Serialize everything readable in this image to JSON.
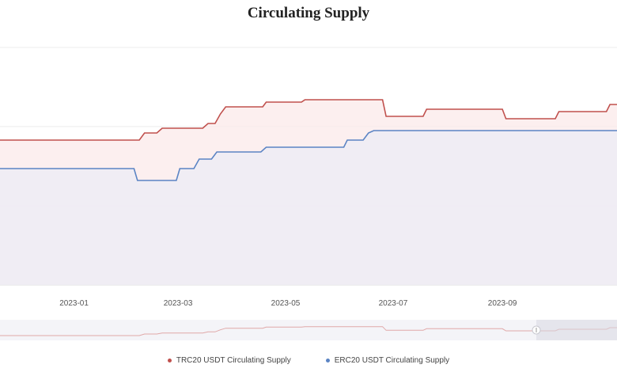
{
  "chart_data": {
    "type": "line",
    "title": "Circulating Supply",
    "xlabel": "",
    "ylabel": "",
    "x_ticks": [
      "2023-01",
      "2023-03",
      "2023-05",
      "2023-07",
      "2023-09"
    ],
    "grid": true,
    "legend_position": "bottom",
    "series": [
      {
        "name": "TRC20 USDT Circulating Supply",
        "color": "#c0504d",
        "fill": "#fbeaea",
        "points": [
          [
            "2022-11-20",
            0.61
          ],
          [
            "2023-02-07",
            0.61
          ],
          [
            "2023-02-10",
            0.64
          ],
          [
            "2023-02-17",
            0.64
          ],
          [
            "2023-02-20",
            0.66
          ],
          [
            "2023-03-15",
            0.66
          ],
          [
            "2023-03-18",
            0.68
          ],
          [
            "2023-03-22",
            0.68
          ],
          [
            "2023-03-25",
            0.72
          ],
          [
            "2023-03-28",
            0.75
          ],
          [
            "2023-04-18",
            0.75
          ],
          [
            "2023-04-20",
            0.77
          ],
          [
            "2023-05-10",
            0.77
          ],
          [
            "2023-05-12",
            0.78
          ],
          [
            "2023-06-25",
            0.78
          ],
          [
            "2023-06-27",
            0.71
          ],
          [
            "2023-07-18",
            0.71
          ],
          [
            "2023-07-20",
            0.74
          ],
          [
            "2023-09-01",
            0.74
          ],
          [
            "2023-09-03",
            0.7
          ],
          [
            "2023-10-01",
            0.7
          ],
          [
            "2023-10-03",
            0.73
          ],
          [
            "2023-10-30",
            0.73
          ],
          [
            "2023-11-01",
            0.76
          ],
          [
            "2023-11-05",
            0.76
          ]
        ]
      },
      {
        "name": "ERC20 USDT Circulating Supply",
        "color": "#5b84c4",
        "fill": "#ececf6",
        "points": [
          [
            "2022-11-20",
            0.49
          ],
          [
            "2023-02-04",
            0.49
          ],
          [
            "2023-02-06",
            0.44
          ],
          [
            "2023-02-28",
            0.44
          ],
          [
            "2023-03-02",
            0.49
          ],
          [
            "2023-03-10",
            0.49
          ],
          [
            "2023-03-13",
            0.53
          ],
          [
            "2023-03-20",
            0.53
          ],
          [
            "2023-03-23",
            0.56
          ],
          [
            "2023-04-17",
            0.56
          ],
          [
            "2023-04-20",
            0.58
          ],
          [
            "2023-06-03",
            0.58
          ],
          [
            "2023-06-05",
            0.61
          ],
          [
            "2023-06-14",
            0.61
          ],
          [
            "2023-06-17",
            0.64
          ],
          [
            "2023-06-20",
            0.65
          ],
          [
            "2023-11-05",
            0.65
          ]
        ]
      }
    ]
  },
  "legend": {
    "trc20": "TRC20 USDT Circulating Supply",
    "erc20": "ERC20 USDT Circulating Supply"
  },
  "colors": {
    "trc20": "#c0504d",
    "erc20": "#5b84c4"
  }
}
